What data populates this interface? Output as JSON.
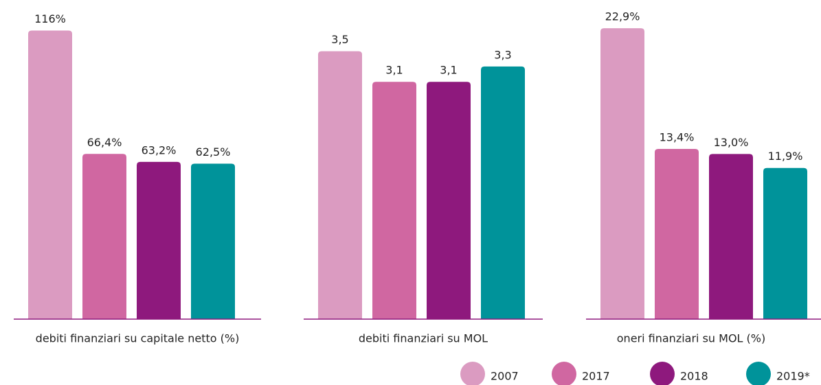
{
  "legend": [
    {
      "name": "2007",
      "color": "#db9bc1"
    },
    {
      "name": "2017",
      "color": "#d067a1"
    },
    {
      "name": "2018",
      "color": "#8e197d"
    },
    {
      "name": "2019*",
      "color": "#00939a"
    }
  ],
  "chart_data": [
    {
      "type": "bar",
      "xlabel": "debiti finanziari su capitale netto (%)",
      "values": [
        116,
        66.4,
        63.2,
        62.5
      ],
      "value_labels": [
        "116%",
        "66,4%",
        "63,2%",
        "62,5%"
      ],
      "ylim": [
        0,
        120
      ]
    },
    {
      "type": "bar",
      "xlabel": "debiti finanziari su MOL",
      "values": [
        3.5,
        3.1,
        3.1,
        3.3
      ],
      "value_labels": [
        "3,5",
        "3,1",
        "3,1",
        "3,3"
      ],
      "ylim": [
        0,
        3.9
      ]
    },
    {
      "type": "bar",
      "xlabel": "oneri finanziari su MOL (%)",
      "values": [
        22.9,
        13.4,
        13.0,
        11.9
      ],
      "value_labels": [
        "22,9%",
        "13,4%",
        "13,0%",
        "11,9%"
      ],
      "ylim": [
        0,
        23.5
      ]
    }
  ]
}
